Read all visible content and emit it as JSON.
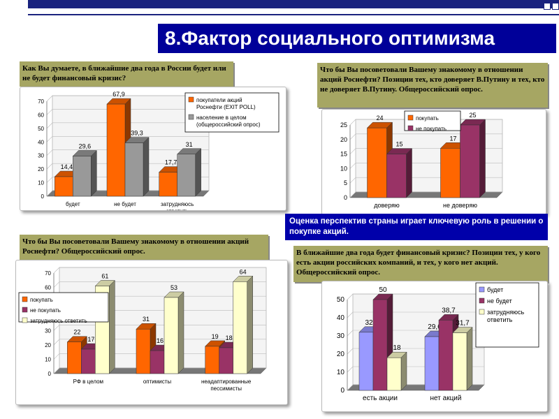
{
  "title": "8.Фактор социального оптимизма",
  "q1": "Как Вы думаете, в ближайшие два года в России будет или не будет финансовый кризис?",
  "q2": "Что бы Вы посоветовали Вашему знакомому в отношении акций Роснефти? Позиции тех, кто доверяет В.Путину и тех, кто не доверяет В.Путину. Общероссийский опрос.",
  "q3": "Что бы Вы посоветовали Вашему знакомому в отношении акций Роснефти? Общероссийский опрос.",
  "q4": "В ближайшие два года будет финансовый кризис? Позиции тех, у кого есть акции российских компаний, и тех, у кого нет акций. Общероссийский опрос.",
  "conclusion": "Оценка перспектив страны играет ключевую роль в решении о покупке акций.",
  "colors": {
    "orange": "#ff6600",
    "gray": "#999999",
    "maroon": "#993366",
    "cream": "#ffffcc",
    "lavender": "#9999ff"
  },
  "chart_data": [
    {
      "type": "bar",
      "categories": [
        "будет",
        "не будет",
        "затрудняюсь ответить"
      ],
      "series": [
        {
          "name": "покупатели акций Роснефти (EXIT POLL)",
          "values": [
            14.4,
            67.9,
            17.7
          ]
        },
        {
          "name": "население в целом (общероссийский опрос)",
          "values": [
            29.6,
            39.3,
            31
          ]
        }
      ],
      "ylim": [
        0,
        70
      ],
      "legend": "top-right"
    },
    {
      "type": "bar",
      "categories": [
        "доверяю",
        "не доверяю"
      ],
      "series": [
        {
          "name": "покупать",
          "values": [
            24,
            17
          ]
        },
        {
          "name": "не покупать",
          "values": [
            15,
            25
          ]
        }
      ],
      "ylim": [
        0,
        25
      ],
      "legend": "top-left"
    },
    {
      "type": "bar",
      "categories": [
        "РФ в целом",
        "оптимисты",
        "неадаптированные пессимисты"
      ],
      "series": [
        {
          "name": "покупать",
          "values": [
            22,
            31,
            19
          ]
        },
        {
          "name": "не покупать",
          "values": [
            17,
            16,
            18
          ]
        },
        {
          "name": "затрудняюсь ответить",
          "values": [
            61,
            53,
            64
          ]
        }
      ],
      "ylim": [
        0,
        70
      ],
      "legend": "top-left"
    },
    {
      "type": "bar",
      "categories": [
        "есть акции",
        "нет акций"
      ],
      "series": [
        {
          "name": "будет",
          "values": [
            32,
            29.6
          ]
        },
        {
          "name": "не будет",
          "values": [
            50,
            38.7
          ]
        },
        {
          "name": "затрудняюсь ответить",
          "values": [
            18,
            31.7
          ]
        }
      ],
      "ylim": [
        0,
        50
      ],
      "legend": "right"
    }
  ]
}
